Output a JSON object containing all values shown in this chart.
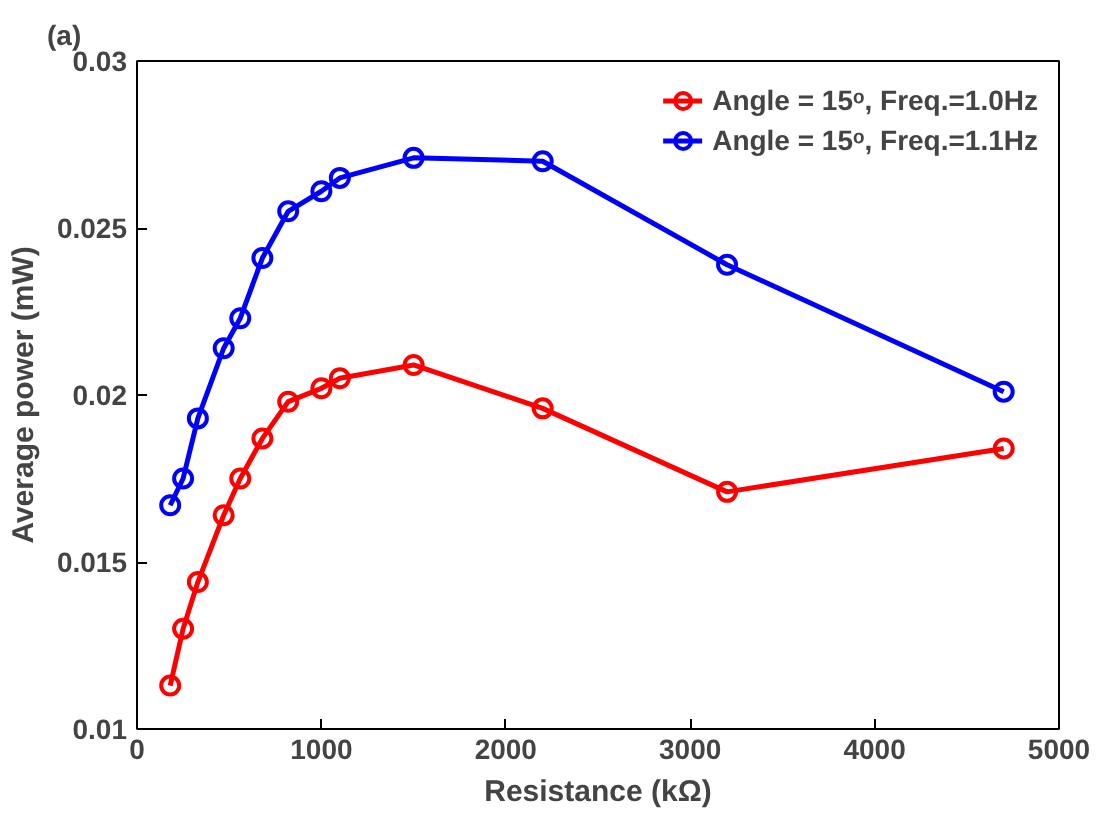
{
  "chart_data": {
    "type": "line",
    "xlabel": "Resistance (kΩ)",
    "ylabel": "Average power (mW)",
    "annotations": [
      "(a)"
    ],
    "x": [
      180,
      250,
      330,
      470,
      560,
      680,
      820,
      1000,
      1100,
      1500,
      2200,
      3200,
      4700
    ],
    "series": [
      {
        "name": "Angle = 15ᵒ, Freq.=1.0Hz",
        "color": "#ff0000",
        "values": [
          0.0113,
          0.013,
          0.0144,
          0.0164,
          0.0175,
          0.0187,
          0.0198,
          0.0202,
          0.0205,
          0.0209,
          0.0196,
          0.0171,
          0.0184
        ]
      },
      {
        "name": "Angle = 15ᵒ, Freq.=1.1Hz",
        "color": "#0000ff",
        "values": [
          0.0167,
          0.0175,
          0.0193,
          0.0214,
          0.0223,
          0.0241,
          0.0255,
          0.0261,
          0.0265,
          0.0271,
          0.027,
          0.0239,
          0.0201
        ]
      }
    ],
    "xlim": [
      0,
      5000
    ],
    "xticks": [
      0,
      1000,
      2000,
      3000,
      4000,
      5000
    ],
    "ylim": [
      0.01,
      0.03
    ],
    "yticks": [
      0.01,
      0.015,
      0.02,
      0.025,
      0.03
    ],
    "grid": false,
    "legend": "top right",
    "marker": "circle",
    "line_style": "solid"
  }
}
